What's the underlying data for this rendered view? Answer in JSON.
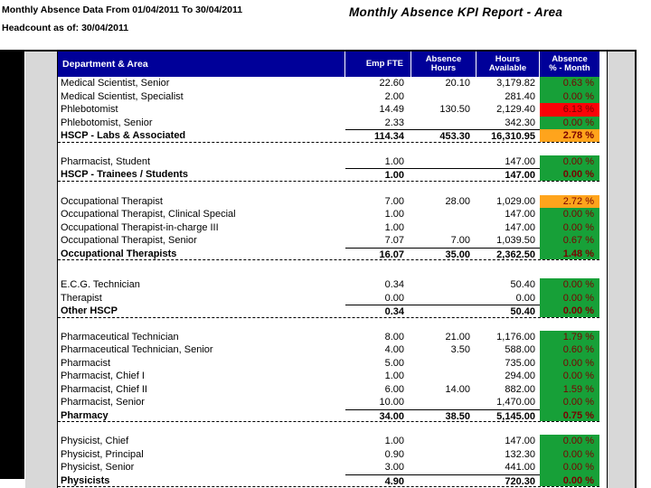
{
  "report": {
    "meta_line1": "Monthly Absence Data From 01/04/2011 To 30/04/2011",
    "meta_line2": "Headcount as of: 30/04/2011",
    "title": "Monthly Absence KPI Report - Area"
  },
  "colors": {
    "header_bg": "#000099",
    "green": "#17a038",
    "red": "#fb0207",
    "orange": "#ffa41c",
    "pct_text": "#7a0000",
    "grey": "#d8d8d8"
  },
  "table": {
    "headers": [
      "Department & Area",
      "Emp FTE",
      "Absence\nHours",
      "Hours\nAvailable",
      "Absence\n% - Month"
    ],
    "groups": [
      {
        "rows": [
          {
            "label": "Medical Scientist, Senior",
            "fte": "22.60",
            "hours": "20.10",
            "avail": "3,179.82",
            "pct": "0.63 %",
            "pct_color": "green",
            "total": false
          },
          {
            "label": "Medical Scientist, Specialist",
            "fte": "2.00",
            "hours": "",
            "avail": "281.40",
            "pct": "0.00 %",
            "pct_color": "green",
            "total": false
          },
          {
            "label": "Phlebotomist",
            "fte": "14.49",
            "hours": "130.50",
            "avail": "2,129.40",
            "pct": "6.13 %",
            "pct_color": "red",
            "total": false
          },
          {
            "label": "Phlebotomist, Senior",
            "fte": "2.33",
            "hours": "",
            "avail": "342.30",
            "pct": "0.00 %",
            "pct_color": "green",
            "total": false
          },
          {
            "label": "HSCP - Labs & Associated",
            "fte": "114.34",
            "hours": "453.30",
            "avail": "16,310.95",
            "pct": "2.78 %",
            "pct_color": "orange",
            "total": true
          }
        ]
      },
      {
        "rows": [
          {
            "label": "Pharmacist, Student",
            "fte": "1.00",
            "hours": "",
            "avail": "147.00",
            "pct": "0.00 %",
            "pct_color": "green",
            "total": false
          },
          {
            "label": "HSCP - Trainees / Students",
            "fte": "1.00",
            "hours": "",
            "avail": "147.00",
            "pct": "0.00 %",
            "pct_color": "green",
            "total": true
          }
        ]
      },
      {
        "rows": [
          {
            "label": "Occupational Therapist",
            "fte": "7.00",
            "hours": "28.00",
            "avail": "1,029.00",
            "pct": "2.72 %",
            "pct_color": "orange",
            "total": false
          },
          {
            "label": "Occupational Therapist, Clinical Special",
            "fte": "1.00",
            "hours": "",
            "avail": "147.00",
            "pct": "0.00 %",
            "pct_color": "green",
            "total": false
          },
          {
            "label": "Occupational Therapist-in-charge III",
            "fte": "1.00",
            "hours": "",
            "avail": "147.00",
            "pct": "0.00 %",
            "pct_color": "green",
            "total": false
          },
          {
            "label": "Occupational Therapist, Senior",
            "fte": "7.07",
            "hours": "7.00",
            "avail": "1,039.50",
            "pct": "0.67 %",
            "pct_color": "green",
            "total": false
          },
          {
            "label": "Occupational Therapists",
            "fte": "16.07",
            "hours": "35.00",
            "avail": "2,362.50",
            "pct": "1.48 %",
            "pct_color": "green",
            "total": true
          }
        ]
      },
      {
        "rows": [
          {
            "label": "E.C.G. Technician",
            "fte": "0.34",
            "hours": "",
            "avail": "50.40",
            "pct": "0.00 %",
            "pct_color": "green",
            "total": false
          },
          {
            "label": "Therapist",
            "fte": "0.00",
            "hours": "",
            "avail": "0.00",
            "pct": "0.00 %",
            "pct_color": "green",
            "total": false
          },
          {
            "label": "Other HSCP",
            "fte": "0.34",
            "hours": "",
            "avail": "50.40",
            "pct": "0.00 %",
            "pct_color": "green",
            "total": true
          }
        ]
      },
      {
        "rows": [
          {
            "label": "Pharmaceutical Technician",
            "fte": "8.00",
            "hours": "21.00",
            "avail": "1,176.00",
            "pct": "1.79 %",
            "pct_color": "green",
            "total": false
          },
          {
            "label": "Pharmaceutical Technician, Senior",
            "fte": "4.00",
            "hours": "3.50",
            "avail": "588.00",
            "pct": "0.60 %",
            "pct_color": "green",
            "total": false
          },
          {
            "label": "Pharmacist",
            "fte": "5.00",
            "hours": "",
            "avail": "735.00",
            "pct": "0.00 %",
            "pct_color": "green",
            "total": false
          },
          {
            "label": "Pharmacist, Chief I",
            "fte": "1.00",
            "hours": "",
            "avail": "294.00",
            "pct": "0.00 %",
            "pct_color": "green",
            "total": false
          },
          {
            "label": "Pharmacist, Chief II",
            "fte": "6.00",
            "hours": "14.00",
            "avail": "882.00",
            "pct": "1.59 %",
            "pct_color": "green",
            "total": false
          },
          {
            "label": "Pharmacist, Senior",
            "fte": "10.00",
            "hours": "",
            "avail": "1,470.00",
            "pct": "0.00 %",
            "pct_color": "green",
            "total": false
          },
          {
            "label": "Pharmacy",
            "fte": "34.00",
            "hours": "38.50",
            "avail": "5,145.00",
            "pct": "0.75 %",
            "pct_color": "green",
            "total": true
          }
        ]
      },
      {
        "rows": [
          {
            "label": "Physicist, Chief",
            "fte": "1.00",
            "hours": "",
            "avail": "147.00",
            "pct": "0.00 %",
            "pct_color": "green",
            "total": false
          },
          {
            "label": "Physicist, Principal",
            "fte": "0.90",
            "hours": "",
            "avail": "132.30",
            "pct": "0.00 %",
            "pct_color": "green",
            "total": false
          },
          {
            "label": "Physicist, Senior",
            "fte": "3.00",
            "hours": "",
            "avail": "441.00",
            "pct": "0.00 %",
            "pct_color": "green",
            "total": false
          },
          {
            "label": "Physicists",
            "fte": "4.90",
            "hours": "",
            "avail": "720.30",
            "pct": "0.00 %",
            "pct_color": "green",
            "total": true
          }
        ]
      }
    ]
  }
}
